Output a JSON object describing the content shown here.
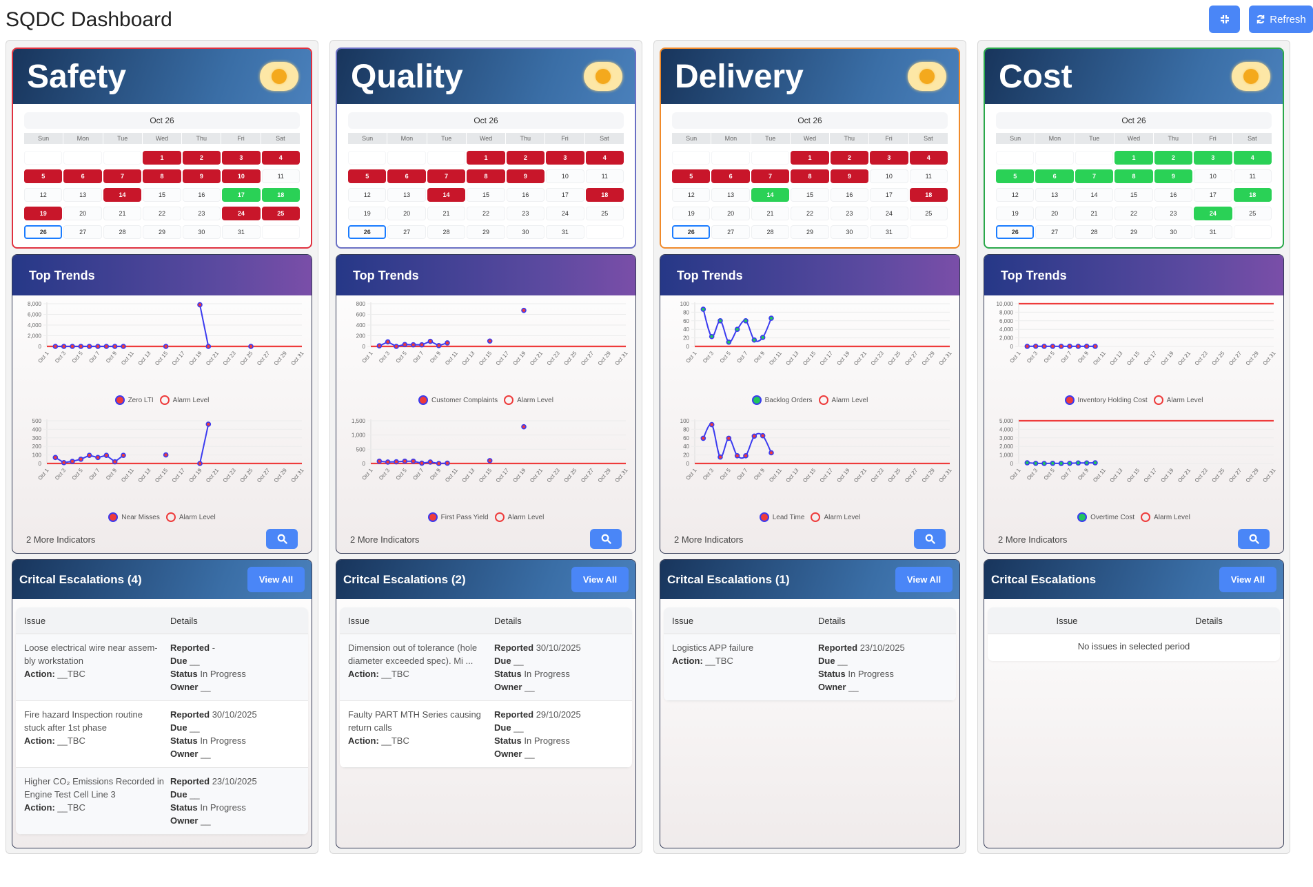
{
  "title": "SQDC Dashboard",
  "toolbar": {
    "collapse_icon": "compress-icon",
    "refresh_label": "Refresh",
    "refresh_icon": "sync-icon"
  },
  "weekdays": [
    "Sun",
    "Mon",
    "Tue",
    "Wed",
    "Thu",
    "Fri",
    "Sat"
  ],
  "colors": {
    "red": "#c8162a",
    "green": "#2ad156",
    "accent": "#4a86f7",
    "line": "#3b3bf0",
    "alarm": "#ee3b3b"
  },
  "columns": [
    {
      "title": "Safety",
      "border_color": "#e0313f",
      "calendar": {
        "month_label": "Oct 26",
        "today": 26,
        "first_weekday": 3,
        "days": 31,
        "red": [
          1,
          2,
          3,
          4,
          5,
          6,
          7,
          8,
          9,
          10,
          14,
          19,
          24,
          25
        ],
        "green": [
          17,
          18
        ]
      },
      "trends": {
        "title": "Top Trends",
        "more_label": "2 More Indicators",
        "charts": [
          {
            "type": "line",
            "series_name": "Zero LTI",
            "point_color": "#ee3b3b",
            "smooth": false,
            "ymax": 8000,
            "yticks": [
              0,
              2000,
              4000,
              6000,
              8000
            ],
            "alarm": 0,
            "values": [
              null,
              0,
              0,
              0,
              0,
              0,
              0,
              0,
              0,
              0,
              null,
              null,
              null,
              null,
              0,
              null,
              null,
              null,
              7800,
              0,
              null,
              null,
              null,
              null,
              0,
              null,
              null,
              null,
              null,
              null,
              null
            ]
          },
          {
            "type": "line",
            "series_name": "Near Misses",
            "point_color": "#ee3b3b",
            "smooth": false,
            "ymax": 500,
            "yticks": [
              0,
              100,
              200,
              300,
              400,
              500
            ],
            "alarm": 0,
            "values": [
              null,
              70,
              10,
              25,
              50,
              95,
              70,
              95,
              20,
              95,
              null,
              null,
              null,
              null,
              100,
              null,
              null,
              null,
              0,
              460,
              null,
              null,
              null,
              null,
              null,
              null,
              null,
              null,
              null,
              null,
              null
            ]
          }
        ],
        "alarm_label": "Alarm Level"
      },
      "escalations": {
        "title": "Critcal Escalations (4)",
        "view_all": "View All",
        "headers": [
          "Issue",
          "Details"
        ],
        "rows": [
          {
            "issue": "Loose electrical wire near assem-bly workstation",
            "action": "__TBC",
            "reported": "-",
            "due": "__",
            "status": "In Progress",
            "owner": "__"
          },
          {
            "issue": "Fire hazard Inspection routine stuck after 1st phase",
            "action": "__TBC",
            "reported": "30/10/2025",
            "due": "__",
            "status": "In Progress",
            "owner": "__"
          },
          {
            "issue": "Higher CO₂ Emissions Recorded in Engine Test Cell Line 3",
            "action": "__TBC",
            "reported": "23/10/2025",
            "due": "__",
            "status": "In Progress",
            "owner": "__"
          }
        ]
      }
    },
    {
      "title": "Quality",
      "border_color": "#6a6fc4",
      "calendar": {
        "month_label": "Oct 26",
        "today": 26,
        "first_weekday": 3,
        "days": 31,
        "red": [
          1,
          2,
          3,
          4,
          5,
          6,
          7,
          8,
          9,
          14,
          18
        ],
        "green": []
      },
      "trends": {
        "title": "Top Trends",
        "more_label": "2 More Indicators",
        "charts": [
          {
            "type": "line",
            "series_name": "Customer Complaints",
            "point_color": "#ee3b3b",
            "smooth": false,
            "ymax": 800,
            "yticks": [
              0,
              200,
              400,
              600,
              800
            ],
            "alarm": 0,
            "values": [
              null,
              10,
              85,
              0,
              35,
              30,
              30,
              95,
              15,
              65,
              null,
              null,
              null,
              null,
              100,
              null,
              null,
              null,
              675,
              null,
              null,
              null,
              null,
              null,
              null,
              null,
              null,
              null,
              null,
              null,
              null
            ]
          },
          {
            "type": "line",
            "series_name": "First Pass Yield",
            "point_color": "#ee3b3b",
            "smooth": false,
            "ymax": 1500,
            "yticks": [
              0,
              500,
              1000,
              1500
            ],
            "alarm": 0,
            "values": [
              null,
              80,
              50,
              60,
              80,
              80,
              10,
              50,
              0,
              10,
              null,
              null,
              null,
              null,
              100,
              null,
              null,
              null,
              1290,
              null,
              null,
              null,
              null,
              null,
              null,
              null,
              null,
              null,
              null,
              null,
              null
            ]
          }
        ],
        "alarm_label": "Alarm Level"
      },
      "escalations": {
        "title": "Critcal Escalations (2)",
        "view_all": "View All",
        "headers": [
          "Issue",
          "Details"
        ],
        "rows": [
          {
            "issue": "Dimension out of tolerance (hole diameter exceeded spec). Mi ...",
            "action": "__TBC",
            "reported": "30/10/2025",
            "due": "__",
            "status": "In Progress",
            "owner": "__"
          },
          {
            "issue": "Faulty PART MTH Series causing return calls",
            "action": "__TBC",
            "reported": "29/10/2025",
            "due": "__",
            "status": "In Progress",
            "owner": "__"
          }
        ]
      }
    },
    {
      "title": "Delivery",
      "border_color": "#f08a2a",
      "calendar": {
        "month_label": "Oct 26",
        "today": 26,
        "first_weekday": 3,
        "days": 31,
        "red": [
          1,
          2,
          3,
          4,
          5,
          6,
          7,
          8,
          9,
          18
        ],
        "green": [
          14
        ]
      },
      "trends": {
        "title": "Top Trends",
        "more_label": "2 More Indicators",
        "charts": [
          {
            "type": "line",
            "series_name": "Backlog Orders",
            "point_color": "#22c55e",
            "smooth": true,
            "ymax": 100,
            "yticks": [
              0,
              20,
              40,
              60,
              80,
              100
            ],
            "alarm": 0,
            "values": [
              null,
              87,
              23,
              60,
              10,
              40,
              60,
              15,
              21,
              66,
              null,
              null,
              null,
              null,
              null,
              null,
              null,
              null,
              null,
              null,
              null,
              null,
              null,
              null,
              null,
              null,
              null,
              null,
              null,
              null,
              null
            ]
          },
          {
            "type": "line",
            "series_name": "Lead Time",
            "point_color": "#ee3b3b",
            "smooth": true,
            "ymax": 100,
            "yticks": [
              0,
              20,
              40,
              60,
              80,
              100
            ],
            "alarm": 0,
            "values": [
              null,
              59,
              91,
              15,
              59,
              18,
              18,
              64,
              65,
              25,
              null,
              null,
              null,
              null,
              null,
              null,
              null,
              null,
              null,
              null,
              null,
              null,
              null,
              null,
              null,
              null,
              null,
              null,
              null,
              null,
              null
            ]
          }
        ],
        "alarm_label": "Alarm Level"
      },
      "escalations": {
        "title": "Critcal Escalations (1)",
        "view_all": "View All",
        "headers": [
          "Issue",
          "Details"
        ],
        "rows": [
          {
            "issue": "Logistics APP failure",
            "action": "__TBC",
            "reported": "23/10/2025",
            "due": "__",
            "status": "In Progress",
            "owner": "__"
          }
        ]
      }
    },
    {
      "title": "Cost",
      "border_color": "#2aa84a",
      "calendar": {
        "month_label": "Oct 26",
        "today": 26,
        "first_weekday": 3,
        "days": 31,
        "red": [],
        "green": [
          1,
          2,
          3,
          4,
          5,
          6,
          7,
          8,
          9,
          18,
          24
        ]
      },
      "trends": {
        "title": "Top Trends",
        "more_label": "2 More Indicators",
        "charts": [
          {
            "type": "line",
            "series_name": "Inventory Holding Cost",
            "point_color": "#ee3b3b",
            "smooth": false,
            "ymax": 10000,
            "yticks": [
              0,
              2000,
              4000,
              6000,
              8000,
              10000
            ],
            "alarm": 10000,
            "values": [
              null,
              20,
              40,
              20,
              20,
              20,
              30,
              20,
              30,
              20,
              null,
              null,
              null,
              null,
              null,
              null,
              null,
              null,
              null,
              null,
              null,
              null,
              null,
              null,
              null,
              null,
              null,
              null,
              null,
              null,
              null
            ]
          },
          {
            "type": "line",
            "series_name": "Overtime Cost",
            "point_color": "#22c55e",
            "smooth": false,
            "ymax": 5000,
            "yticks": [
              0,
              1000,
              2000,
              3000,
              4000,
              5000
            ],
            "alarm": 5000,
            "values": [
              null,
              80,
              20,
              0,
              20,
              10,
              20,
              60,
              60,
              80,
              null,
              null,
              null,
              null,
              null,
              null,
              null,
              null,
              null,
              null,
              null,
              null,
              null,
              null,
              null,
              null,
              null,
              null,
              null,
              null,
              null
            ]
          }
        ],
        "alarm_label": "Alarm Level"
      },
      "escalations": {
        "title": "Critcal Escalations",
        "view_all": "View All",
        "headers": [
          "Issue",
          "Details"
        ],
        "rows": [],
        "empty": "No issues in selected period"
      }
    }
  ],
  "labels": {
    "reported": "Reported",
    "due": "Due",
    "status": "Status",
    "owner": "Owner",
    "action": "Action:"
  },
  "x_labels": [
    "Oct 1",
    "Oct 2",
    "Oct 3",
    "Oct 4",
    "Oct 5",
    "Oct 6",
    "Oct 7",
    "Oct 8",
    "Oct 9",
    "Oct 10",
    "Oct 11",
    "Oct 12",
    "Oct 13",
    "Oct 14",
    "Oct 15",
    "Oct 16",
    "Oct 17",
    "Oct 18",
    "Oct 19",
    "Oct 20",
    "Oct 21",
    "Oct 22",
    "Oct 23",
    "Oct 24",
    "Oct 25",
    "Oct 26",
    "Oct 27",
    "Oct 28",
    "Oct 29",
    "Oct 30",
    "Oct 31"
  ]
}
